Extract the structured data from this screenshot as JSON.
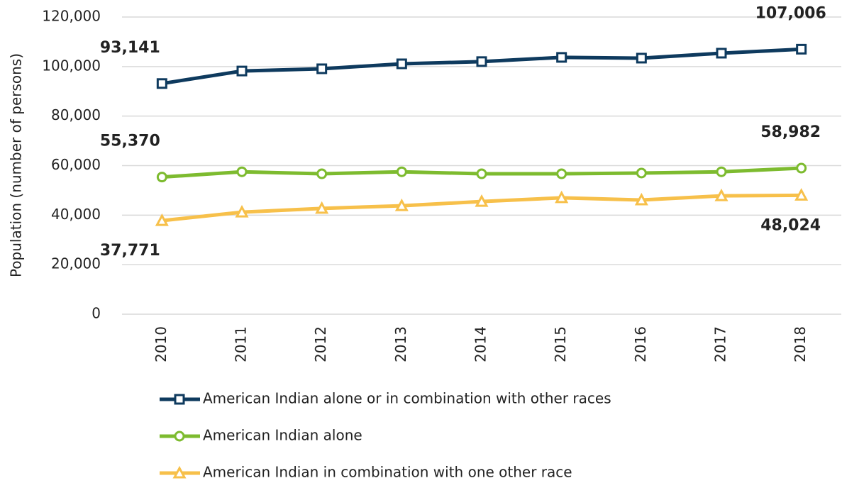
{
  "chart_data": {
    "type": "line",
    "y_label": "Population (number of persons)",
    "categories": [
      "2010",
      "2011",
      "2012",
      "2013",
      "2014",
      "2015",
      "2016",
      "2017",
      "2018"
    ],
    "series": [
      {
        "name": "American Indian alone or in combination with other races",
        "color": "#0e3a5e",
        "marker": "square",
        "values": [
          93141,
          98200,
          99100,
          101100,
          102000,
          103700,
          103400,
          105400,
          107006
        ],
        "value_labels": [
          "93,141",
          null,
          null,
          null,
          null,
          null,
          null,
          null,
          "107,006"
        ]
      },
      {
        "name": "American Indian alone",
        "color": "#7dbb2f",
        "marker": "circle",
        "values": [
          55370,
          57500,
          56700,
          57500,
          56700,
          56700,
          57000,
          57500,
          58982
        ],
        "value_labels": [
          "55,370",
          null,
          null,
          null,
          null,
          null,
          null,
          null,
          "58,982"
        ]
      },
      {
        "name": "American Indian in combination with one other race",
        "color": "#f7c04a",
        "marker": "triangle",
        "values": [
          37771,
          41200,
          42700,
          43800,
          45500,
          47000,
          46100,
          47800,
          48024
        ],
        "value_labels": [
          "37,771",
          null,
          null,
          null,
          null,
          null,
          null,
          null,
          "48,024"
        ]
      }
    ],
    "ylim": [
      0,
      120000
    ],
    "yticks": [
      0,
      {
        "value": 20000,
        "label": "20,000"
      },
      {
        "value": 40000,
        "label": "40,000"
      },
      {
        "value": 60000,
        "label": "60,000"
      },
      {
        "value": 80000,
        "label": "80,000"
      },
      {
        "value": 100000,
        "label": "100,000"
      },
      {
        "value": 120000,
        "label": "120,000"
      }
    ],
    "grid": true
  }
}
